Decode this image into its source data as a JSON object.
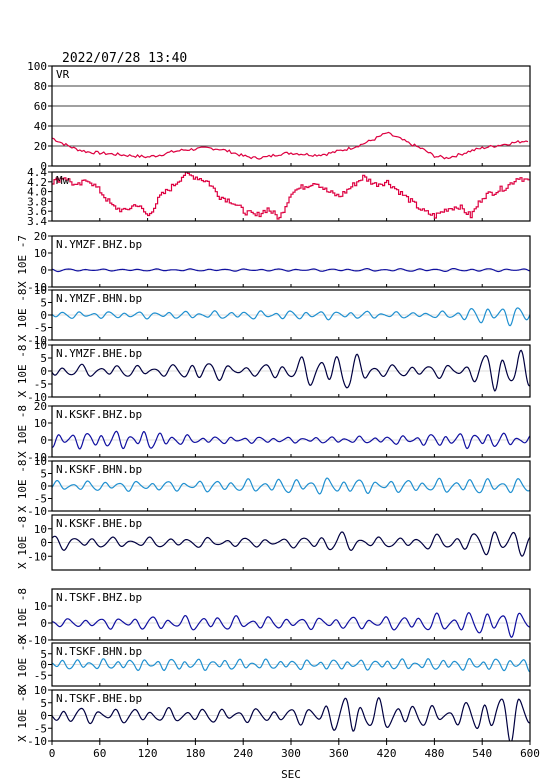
{
  "header": {
    "datetime": "2022/07/28 13:40"
  },
  "xaxis": {
    "label": "SEC",
    "range": [
      0,
      600
    ],
    "ticks": [
      "0",
      "60",
      "120",
      "180",
      "240",
      "300",
      "360",
      "420",
      "480",
      "540",
      "600"
    ]
  },
  "colors": {
    "vr": "#dd0040",
    "mw": "#dd0040",
    "bhz": "#1010a0",
    "bhn": "#2090d0",
    "bhe": "#000040",
    "axis": "#000000"
  },
  "chart_data": [
    {
      "type": "line",
      "id": "vr",
      "label": "VR",
      "ylim": [
        0,
        100
      ],
      "yticks": [
        "100",
        "80",
        "60",
        "40",
        "20",
        "0"
      ],
      "grid": true,
      "x": [
        0,
        15,
        30,
        45,
        60,
        75,
        90,
        105,
        120,
        135,
        150,
        165,
        180,
        195,
        210,
        225,
        240,
        255,
        270,
        285,
        300,
        315,
        330,
        345,
        360,
        375,
        390,
        405,
        420,
        435,
        450,
        465,
        480,
        495,
        510,
        525,
        540,
        555,
        570,
        585,
        600
      ],
      "values": [
        28,
        22,
        17,
        14,
        13,
        12,
        11,
        10,
        9,
        11,
        14,
        16,
        17,
        18,
        17,
        14,
        10,
        8,
        9,
        12,
        13,
        12,
        11,
        12,
        15,
        18,
        22,
        27,
        33,
        28,
        22,
        17,
        10,
        8,
        11,
        15,
        18,
        20,
        22,
        24,
        26
      ]
    },
    {
      "type": "line",
      "id": "mw",
      "label": "Mw",
      "ylim": [
        3.4,
        4.4
      ],
      "yticks": [
        "4.4",
        "4.2",
        "4.0",
        "3.8",
        "3.6",
        "3.4"
      ],
      "x": [
        0,
        15,
        30,
        45,
        60,
        75,
        90,
        105,
        120,
        135,
        150,
        165,
        180,
        195,
        210,
        225,
        240,
        255,
        270,
        285,
        300,
        315,
        330,
        345,
        360,
        375,
        390,
        405,
        420,
        435,
        450,
        465,
        480,
        495,
        510,
        525,
        540,
        555,
        570,
        585,
        600
      ],
      "values": [
        4.2,
        4.3,
        4.1,
        4.25,
        4.0,
        3.7,
        3.6,
        3.75,
        3.5,
        3.9,
        4.1,
        4.35,
        4.3,
        4.2,
        3.9,
        3.8,
        3.6,
        3.5,
        3.65,
        3.45,
        4.0,
        4.1,
        4.2,
        4.0,
        3.9,
        4.1,
        4.3,
        4.15,
        4.2,
        4.0,
        3.8,
        3.6,
        3.5,
        3.65,
        3.7,
        3.5,
        3.9,
        4.0,
        4.1,
        4.3,
        4.2
      ]
    },
    {
      "type": "line",
      "id": "ymzf-bhz",
      "station": "N.YMZF.BHZ.bp",
      "ylabel": "X 10E -7",
      "ylim": [
        -10,
        20
      ],
      "yticks": [
        "20",
        "10",
        "0",
        "-10"
      ],
      "wave": {
        "amp": 1.2,
        "base_period": 22,
        "envelope": [
          [
            0,
            1.0
          ],
          [
            20,
            0.6
          ],
          [
            60,
            0.5
          ],
          [
            300,
            0.6
          ],
          [
            540,
            0.8
          ],
          [
            600,
            0.7
          ]
        ]
      },
      "color_key": "bhz"
    },
    {
      "type": "line",
      "id": "ymzf-bhn",
      "station": "N.YMZF.BHN.bp",
      "ylabel": "X 10E -8",
      "ylim": [
        -10,
        10
      ],
      "yticks": [
        "10",
        "5",
        "0",
        "-5",
        "-10"
      ],
      "wave": {
        "amp": 1.3,
        "base_period": 19,
        "envelope": [
          [
            0,
            1.2
          ],
          [
            150,
            1.3
          ],
          [
            330,
            1.6
          ],
          [
            480,
            1.0
          ],
          [
            540,
            3.0
          ],
          [
            570,
            3.6
          ],
          [
            600,
            3.0
          ]
        ]
      },
      "color_key": "bhn"
    },
    {
      "type": "line",
      "id": "ymzf-bhe",
      "station": "N.YMZF.BHE.bp",
      "ylabel": "X 10E -8",
      "ylim": [
        -10,
        10
      ],
      "yticks": [
        "10",
        "5",
        "0",
        "-5",
        "-10"
      ],
      "wave": {
        "amp": 2.0,
        "base_period": 23,
        "envelope": [
          [
            0,
            2.2
          ],
          [
            150,
            2.0
          ],
          [
            180,
            4.0
          ],
          [
            250,
            1.6
          ],
          [
            330,
            5.5
          ],
          [
            370,
            7.0
          ],
          [
            420,
            2.0
          ],
          [
            520,
            2.5
          ],
          [
            560,
            8.5
          ],
          [
            580,
            9.5
          ],
          [
            600,
            5.0
          ]
        ]
      },
      "color_key": "bhe"
    },
    {
      "type": "line",
      "id": "kskf-bhz",
      "station": "N.KSKF.BHZ.bp",
      "ylabel": "X 10E -8",
      "ylim": [
        -10,
        20
      ],
      "yticks": [
        "20",
        "10",
        "0",
        "-10"
      ],
      "wave": {
        "amp": 2.0,
        "base_period": 18,
        "envelope": [
          [
            0,
            4.0
          ],
          [
            120,
            5.0
          ],
          [
            180,
            2.0
          ],
          [
            300,
            1.5
          ],
          [
            420,
            2.0
          ],
          [
            540,
            4.5
          ],
          [
            600,
            2.5
          ]
        ]
      },
      "color_key": "bhz"
    },
    {
      "type": "line",
      "id": "kskf-bhn",
      "station": "N.KSKF.BHN.bp",
      "ylabel": "X 10E -8",
      "ylim": [
        -10,
        10
      ],
      "yticks": [
        "10",
        "5",
        "0",
        "-5",
        "-10"
      ],
      "wave": {
        "amp": 2.0,
        "base_period": 20,
        "envelope": [
          [
            0,
            1.8
          ],
          [
            150,
            1.8
          ],
          [
            360,
            3.0
          ],
          [
            420,
            2.2
          ],
          [
            540,
            2.8
          ],
          [
            600,
            2.5
          ]
        ]
      },
      "color_key": "bhn"
    },
    {
      "type": "line",
      "id": "kskf-bhe",
      "station": "N.KSKF.BHE.bp",
      "ylabel": "X 10E -8",
      "ylim": [
        -20,
        20
      ],
      "yticks": [
        "10",
        "0",
        "-10"
      ],
      "wave": {
        "amp": 4.0,
        "base_period": 24,
        "envelope": [
          [
            0,
            5.0
          ],
          [
            60,
            3.5
          ],
          [
            300,
            3.0
          ],
          [
            360,
            7.0
          ],
          [
            420,
            3.0
          ],
          [
            540,
            7.0
          ],
          [
            570,
            13.0
          ],
          [
            600,
            6.0
          ]
        ]
      },
      "color_key": "bhe"
    },
    {
      "type": "line",
      "id": "tskf-bhz",
      "station": "N.TSKF.BHZ.bp",
      "ylabel": "X 10E -8",
      "ylim": [
        -10,
        20
      ],
      "yticks": [
        "10",
        "0",
        "-10"
      ],
      "wave": {
        "amp": 3.0,
        "base_period": 21,
        "envelope": [
          [
            0,
            2.0
          ],
          [
            120,
            3.5
          ],
          [
            200,
            4.0
          ],
          [
            300,
            3.0
          ],
          [
            420,
            3.5
          ],
          [
            540,
            6.0
          ],
          [
            570,
            8.0
          ],
          [
            600,
            4.0
          ]
        ]
      },
      "color_key": "bhz"
    },
    {
      "type": "line",
      "id": "tskf-bhn",
      "station": "N.TSKF.BHN.bp",
      "ylabel": "X 10E -8",
      "ylim": [
        -10,
        10
      ],
      "yticks": [
        "5",
        "0",
        "-5"
      ],
      "wave": {
        "amp": 2.0,
        "base_period": 17,
        "envelope": [
          [
            0,
            2.0
          ],
          [
            150,
            2.5
          ],
          [
            300,
            2.0
          ],
          [
            420,
            2.2
          ],
          [
            540,
            2.5
          ],
          [
            600,
            2.8
          ]
        ]
      },
      "color_key": "bhn"
    },
    {
      "type": "line",
      "id": "tskf-bhe",
      "station": "N.TSKF.BHE.bp",
      "ylabel": "X 10E -8",
      "ylim": [
        -10,
        10
      ],
      "yticks": [
        "10",
        "5",
        "0",
        "-5",
        "-10"
      ],
      "wave": {
        "amp": 2.5,
        "base_period": 22,
        "envelope": [
          [
            0,
            3.0
          ],
          [
            120,
            2.5
          ],
          [
            300,
            2.5
          ],
          [
            350,
            5.0
          ],
          [
            380,
            8.0
          ],
          [
            420,
            5.0
          ],
          [
            500,
            3.0
          ],
          [
            560,
            8.0
          ],
          [
            580,
            9.0
          ],
          [
            600,
            7.0
          ]
        ]
      },
      "color_key": "bhe"
    }
  ]
}
